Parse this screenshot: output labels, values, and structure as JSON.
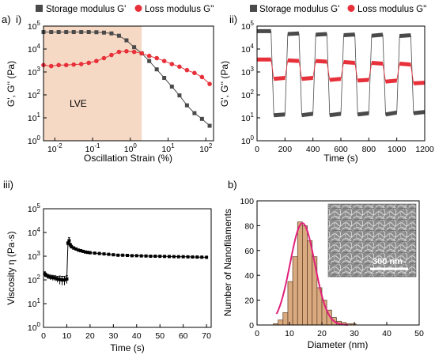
{
  "colors": {
    "storage": "#4a4a4a",
    "loss": "#e8303a",
    "lve_region": "#f5d9c4",
    "hist_fill": "#d9aa80",
    "hist_stroke": "#5a3a22",
    "fit_curve": "#e0207a",
    "viscosity": "#000000"
  },
  "chart_data": [
    {
      "id": "i",
      "type": "line",
      "panel_label": "a)",
      "sub_label": "i)",
      "xlabel": "Oscillation Strain (%)",
      "ylabel": "G', G'' (Pa)",
      "xscale": "log",
      "yscale": "log",
      "xlim": [
        0.005,
        160
      ],
      "ylim": [
        1,
        100000
      ],
      "xtick_labels": [
        "10-2",
        "10-1",
        "100",
        "101",
        "102"
      ],
      "ytick_labels": [
        "100",
        "101",
        "102",
        "103",
        "104",
        "105"
      ],
      "annotation": "LVE",
      "lve_range": [
        0.005,
        2
      ],
      "legend": [
        "Storage modulus G'",
        "Loss modulus G''"
      ],
      "legend_position": "top",
      "series": [
        {
          "name": "Storage modulus G'",
          "marker": "square",
          "x": [
            0.005,
            0.008,
            0.0126,
            0.02,
            0.0316,
            0.05,
            0.079,
            0.126,
            0.2,
            0.316,
            0.5,
            0.79,
            1.26,
            2,
            3.16,
            5,
            7.9,
            12.6,
            20,
            31.6,
            50,
            79,
            126
          ],
          "y": [
            55000,
            55000,
            55000,
            55000,
            55000,
            55000,
            55000,
            54000,
            52000,
            48000,
            38000,
            24000,
            12000,
            6500,
            3000,
            1300,
            550,
            230,
            95,
            35,
            16,
            9,
            4.5
          ]
        },
        {
          "name": "Loss modulus G''",
          "marker": "circle",
          "x": [
            0.005,
            0.008,
            0.0126,
            0.02,
            0.0316,
            0.05,
            0.079,
            0.126,
            0.2,
            0.316,
            0.5,
            0.79,
            1.26,
            2,
            3.16,
            5,
            7.9,
            12.6,
            20,
            31.6,
            50,
            79,
            126
          ],
          "y": [
            2000,
            1800,
            2000,
            2000,
            2100,
            2200,
            2500,
            3000,
            4000,
            5500,
            7500,
            8000,
            7500,
            6500,
            5000,
            4000,
            3000,
            2200,
            1700,
            1200,
            900,
            600,
            300
          ]
        }
      ]
    },
    {
      "id": "ii",
      "type": "line",
      "sub_label": "ii)",
      "xlabel": "Time (s)",
      "ylabel": "G', G'' (Pa)",
      "xscale": "linear",
      "yscale": "log",
      "xlim": [
        0,
        1200
      ],
      "ylim": [
        1,
        100000
      ],
      "xticks": [
        0,
        200,
        400,
        600,
        800,
        1000,
        1200
      ],
      "ytick_labels": [
        "100",
        "101",
        "102",
        "103",
        "104",
        "105"
      ],
      "legend": [
        "Storage modulus G'",
        "Loss modulus G''"
      ],
      "legend_position": "top",
      "series": [
        {
          "name": "Storage modulus G'",
          "segments": [
            {
              "x0": 0,
              "x1": 100,
              "y0": 60000,
              "y1": 60000
            },
            {
              "x0": 120,
              "x1": 200,
              "y0": 13,
              "y1": 14
            },
            {
              "x0": 220,
              "x1": 300,
              "y0": 45000,
              "y1": 48000
            },
            {
              "x0": 320,
              "x1": 400,
              "y0": 13,
              "y1": 15
            },
            {
              "x0": 420,
              "x1": 500,
              "y0": 42000,
              "y1": 45000
            },
            {
              "x0": 520,
              "x1": 600,
              "y0": 13,
              "y1": 15
            },
            {
              "x0": 620,
              "x1": 700,
              "y0": 40000,
              "y1": 43000
            },
            {
              "x0": 720,
              "x1": 800,
              "y0": 14,
              "y1": 16
            },
            {
              "x0": 820,
              "x1": 900,
              "y0": 38000,
              "y1": 42000
            },
            {
              "x0": 920,
              "x1": 1000,
              "y0": 14,
              "y1": 17
            },
            {
              "x0": 1020,
              "x1": 1100,
              "y0": 37000,
              "y1": 40000
            },
            {
              "x0": 1120,
              "x1": 1200,
              "y0": 16,
              "y1": 18
            }
          ]
        },
        {
          "name": "Loss modulus G''",
          "segments": [
            {
              "x0": 0,
              "x1": 100,
              "y0": 3500,
              "y1": 3500
            },
            {
              "x0": 120,
              "x1": 200,
              "y0": 500,
              "y1": 550
            },
            {
              "x0": 220,
              "x1": 300,
              "y0": 3200,
              "y1": 3000
            },
            {
              "x0": 320,
              "x1": 400,
              "y0": 500,
              "y1": 550
            },
            {
              "x0": 420,
              "x1": 500,
              "y0": 3000,
              "y1": 2800
            },
            {
              "x0": 520,
              "x1": 600,
              "y0": 450,
              "y1": 500
            },
            {
              "x0": 620,
              "x1": 700,
              "y0": 2700,
              "y1": 2500
            },
            {
              "x0": 720,
              "x1": 800,
              "y0": 420,
              "y1": 450
            },
            {
              "x0": 820,
              "x1": 900,
              "y0": 2500,
              "y1": 2300
            },
            {
              "x0": 920,
              "x1": 1000,
              "y0": 380,
              "y1": 420
            },
            {
              "x0": 1020,
              "x1": 1100,
              "y0": 2300,
              "y1": 2100
            },
            {
              "x0": 1120,
              "x1": 1200,
              "y0": 320,
              "y1": 340
            }
          ]
        }
      ]
    },
    {
      "id": "iii",
      "type": "scatter",
      "sub_label": "iii)",
      "xlabel": "Time (s)",
      "ylabel": "Viscosity η (Pa·s)",
      "xscale": "linear",
      "yscale": "log",
      "xlim": [
        0,
        72
      ],
      "ylim": [
        1,
        100000
      ],
      "xticks": [
        0,
        10,
        20,
        30,
        40,
        50,
        60,
        70
      ],
      "ytick_labels": [
        "100",
        "101",
        "102",
        "103",
        "104",
        "105"
      ],
      "series": [
        {
          "name": "",
          "x": [
            0.5,
            1,
            2,
            3,
            4,
            5,
            6,
            7,
            8,
            9,
            10,
            10.5,
            11,
            11.5,
            12,
            13,
            14,
            15,
            16,
            17,
            18,
            19,
            20,
            22,
            24,
            26,
            28,
            30,
            32,
            34,
            36,
            38,
            40,
            42,
            44,
            46,
            48,
            50,
            52,
            54,
            56,
            58,
            60,
            62,
            64,
            66,
            68,
            70
          ],
          "y": [
            180,
            160,
            140,
            130,
            125,
            120,
            110,
            105,
            100,
            100,
            110,
            3500,
            4500,
            3000,
            2500,
            2200,
            2000,
            1800,
            1700,
            1600,
            1500,
            1450,
            1400,
            1350,
            1300,
            1250,
            1200,
            1150,
            1100,
            1100,
            1080,
            1050,
            1050,
            1030,
            1020,
            1000,
            1000,
            990,
            980,
            970,
            960,
            950,
            950,
            940,
            930,
            920,
            910,
            900
          ],
          "yerr": [
            40,
            30,
            30,
            30,
            30,
            30,
            30,
            40,
            40,
            40,
            40,
            600,
            1500,
            500,
            400,
            300,
            250,
            200,
            200,
            150,
            150,
            150,
            150,
            120,
            120,
            100,
            100,
            100,
            100,
            100,
            100,
            100,
            100,
            100,
            100,
            100,
            100,
            100,
            100,
            100,
            100,
            100,
            100,
            100,
            100,
            100,
            100,
            100
          ]
        }
      ]
    },
    {
      "id": "b",
      "type": "bar",
      "panel_label": "b)",
      "xlabel": "Diameter (nm)",
      "ylabel": "Number of Nanofilaments",
      "xlim": [
        0,
        50
      ],
      "ylim": [
        0,
        100
      ],
      "xticks": [
        0,
        10,
        20,
        30,
        40,
        50
      ],
      "yticks": [
        0,
        20,
        40,
        60,
        80,
        100
      ],
      "bin_edges": [
        5,
        6.5,
        8,
        9.5,
        11,
        12.5,
        14,
        15.5,
        17,
        18.5,
        20,
        21.5,
        23,
        24.5,
        26,
        27.5,
        29,
        30.5
      ],
      "counts": [
        1,
        4,
        10,
        35,
        55,
        83,
        80,
        68,
        55,
        30,
        20,
        12,
        6,
        3,
        2,
        1,
        1
      ],
      "fit": {
        "type": "gaussian",
        "mean": 14,
        "sigma": 3.8,
        "amplitude": 82
      },
      "inset": {
        "scale_bar_label": "300 nm"
      }
    }
  ]
}
